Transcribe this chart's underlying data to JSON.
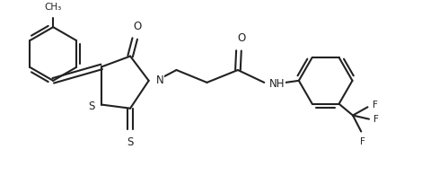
{
  "bg_color": "#ffffff",
  "line_color": "#222222",
  "line_width": 1.5,
  "font_size": 8.0,
  "figsize": [
    4.99,
    2.15
  ],
  "dpi": 100,
  "xlim": [
    0,
    9.5
  ],
  "ylim": [
    0,
    4.1
  ]
}
